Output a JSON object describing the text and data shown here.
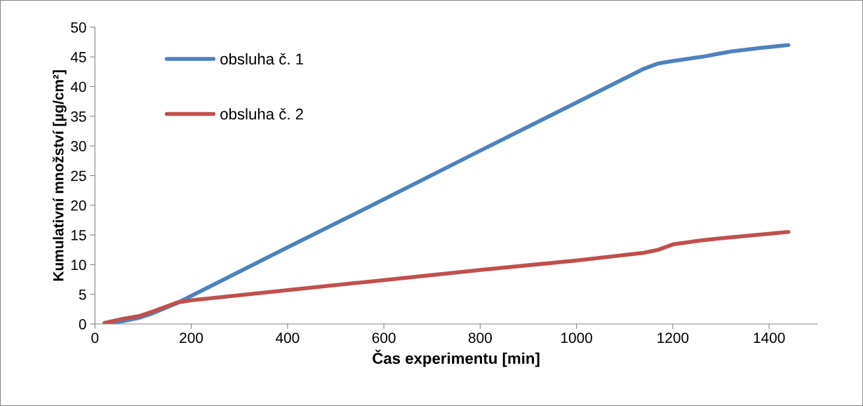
{
  "chart_data": {
    "type": "line",
    "xlabel": "Čas experimentu [min]",
    "ylabel": "Kumulativní množství [µg/cm²]",
    "xlim": [
      0,
      1500
    ],
    "xticks": [
      0,
      200,
      400,
      600,
      800,
      1000,
      1200,
      1400
    ],
    "ylim": [
      0,
      50
    ],
    "yticks": [
      0,
      5,
      10,
      15,
      20,
      25,
      30,
      35,
      40,
      45,
      50
    ],
    "grid": false,
    "legend": "top left",
    "marker": "none",
    "line_style": "solid",
    "series": [
      {
        "name": "obsluha č. 1",
        "color": "#4f81bd",
        "x": [
          20,
          60,
          90,
          120,
          170,
          400,
          600,
          800,
          1000,
          1140,
          1170,
          1200,
          1260,
          1320,
          1380,
          1440
        ],
        "values": [
          0,
          0.5,
          1.0,
          1.8,
          3.5,
          12.9,
          21.0,
          29.2,
          37.3,
          43,
          43.9,
          44.3,
          45,
          45.9,
          46.5,
          47
        ]
      },
      {
        "name": "obsluha č. 2",
        "color": "#c0504d",
        "x": [
          20,
          60,
          90,
          120,
          170,
          200,
          400,
          600,
          800,
          1000,
          1140,
          1170,
          1200,
          1260,
          1320,
          1440
        ],
        "values": [
          0.2,
          0.9,
          1.3,
          2.1,
          3.6,
          4.0,
          5.7,
          7.4,
          9.1,
          10.7,
          12,
          12.5,
          13.4,
          14.1,
          14.6,
          15.5
        ]
      }
    ]
  }
}
